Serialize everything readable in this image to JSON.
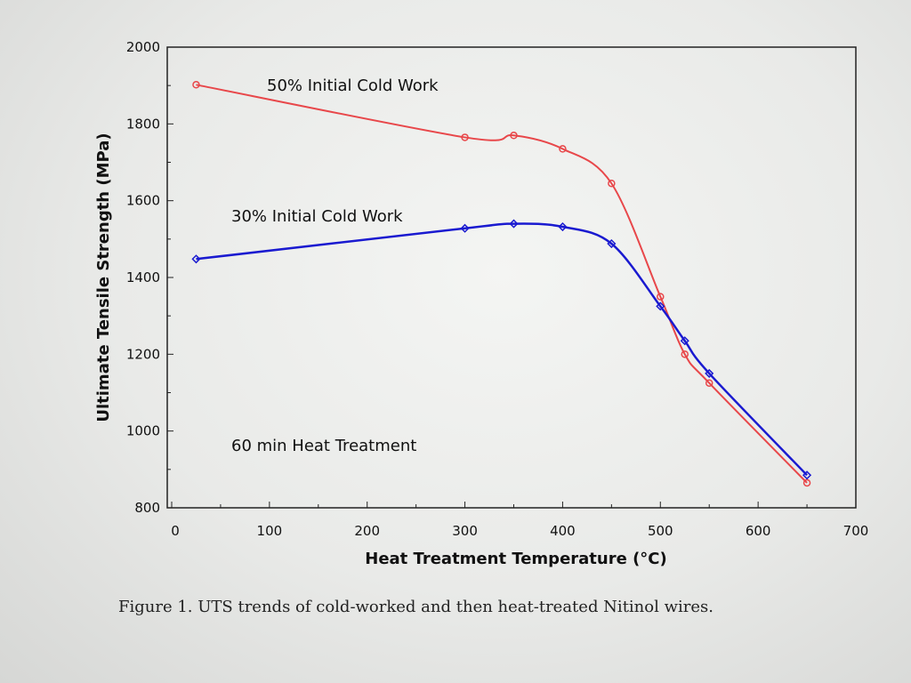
{
  "chart_data": {
    "type": "line",
    "xlabel": "Heat Treatment Temperature (°C)",
    "ylabel": "Ultimate Tensile Strength (MPa)",
    "xlim": [
      0,
      700
    ],
    "ylim": [
      800,
      2000
    ],
    "xticks": [
      0,
      100,
      200,
      300,
      400,
      500,
      600,
      700
    ],
    "yticks": [
      800,
      1000,
      1200,
      1400,
      1600,
      1800,
      2000
    ],
    "grid": false,
    "smoothed": true,
    "annotations": [
      "50% Initial Cold Work",
      "30% Initial Cold Work",
      "60 min Heat Treatment"
    ],
    "series": [
      {
        "name": "50% Initial Cold Work",
        "color": "#e8474a",
        "marker": "circle",
        "x": [
          25,
          300,
          350,
          400,
          450,
          500,
          525,
          550,
          650
        ],
        "y": [
          1902,
          1765,
          1770,
          1735,
          1645,
          1350,
          1200,
          1125,
          865
        ]
      },
      {
        "name": "30% Initial Cold Work",
        "color": "#1a1ad0",
        "marker": "diamond",
        "x": [
          25,
          300,
          350,
          400,
          450,
          500,
          525,
          550,
          650
        ],
        "y": [
          1448,
          1528,
          1540,
          1532,
          1488,
          1325,
          1235,
          1150,
          885
        ]
      }
    ]
  },
  "caption": "Figure 1.  UTS trends of cold-worked and then heat-treated Nitinol wires."
}
